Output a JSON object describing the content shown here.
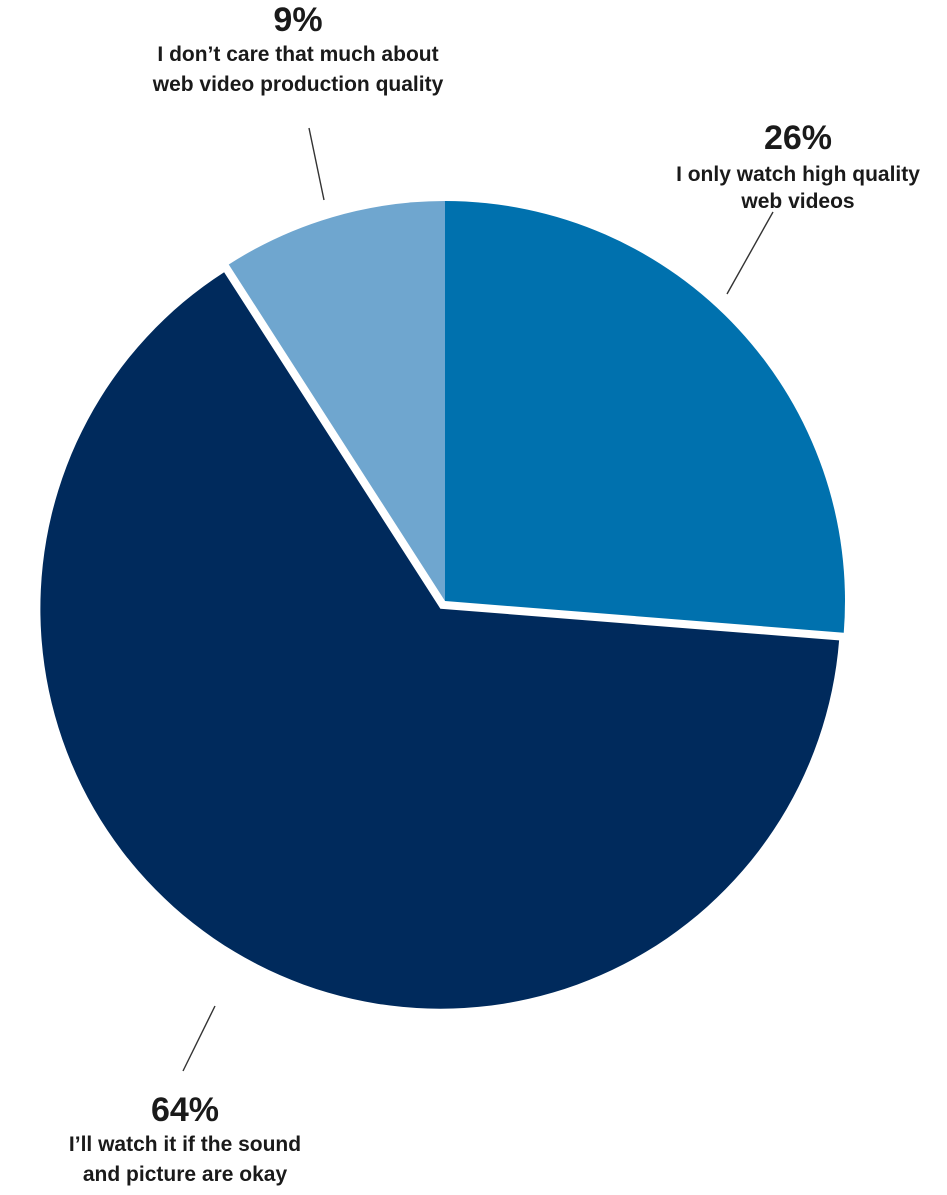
{
  "chart_data": {
    "type": "pie",
    "slices": [
      {
        "value": 26,
        "value_label": "26%",
        "label_lines": [
          "I only watch high quality",
          "web videos"
        ],
        "color": "#0071AE"
      },
      {
        "value": 64,
        "value_label": "64%",
        "label_lines": [
          "I’ll watch it if the sound",
          "and picture are okay"
        ],
        "color": "#002A5C"
      },
      {
        "value": 9,
        "value_label": "9%",
        "label_lines": [
          "I don’t care that much about",
          "web video production quality"
        ],
        "color": "#6FA6CF"
      }
    ],
    "start": "12 o'clock",
    "direction": "clockwise",
    "exploded_slice": 1
  }
}
